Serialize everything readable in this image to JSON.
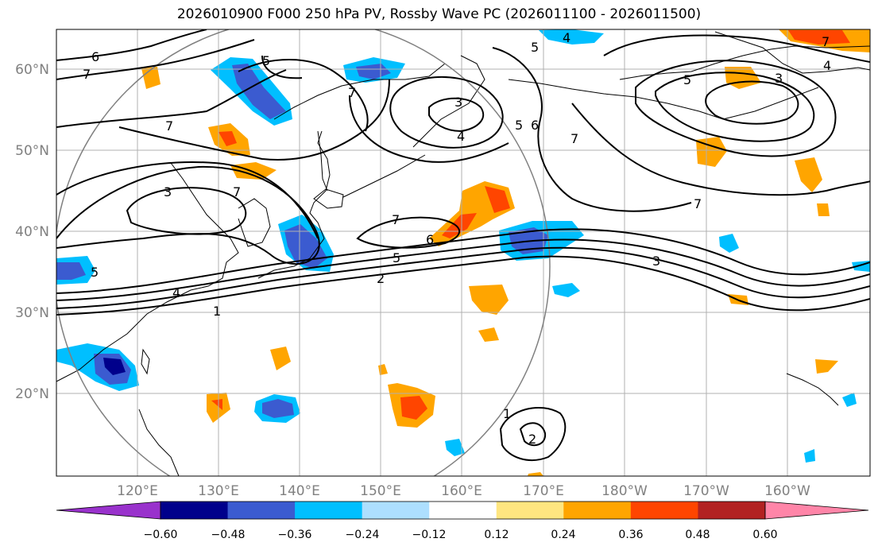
{
  "title": "2026010900 F000 250 hPa PV, Rossby Wave PC (2026011100 - 2026011500)",
  "map": {
    "lon_ticks": [
      "120°E",
      "130°E",
      "140°E",
      "150°E",
      "160°E",
      "170°E",
      "180°W",
      "170°W",
      "160°W"
    ],
    "lat_ticks": [
      "60°N",
      "50°N",
      "40°N",
      "30°N",
      "20°N"
    ],
    "contour_labels": [
      "6",
      "7",
      "5",
      "4",
      "7",
      "7",
      "3",
      "4",
      "5",
      "6",
      "7",
      "3",
      "7",
      "7",
      "6",
      "5",
      "2",
      "4",
      "1",
      "5",
      "3",
      "7",
      "5",
      "4",
      "7",
      "5",
      "3",
      "1",
      "2"
    ],
    "colors": {
      "gridline": "#b0b0b0",
      "contour": "#000000",
      "circle": "#808080"
    }
  },
  "colorbar": {
    "labels": [
      "−0.60",
      "−0.48",
      "−0.36",
      "−0.24",
      "−0.12",
      "0.12",
      "0.24",
      "0.36",
      "0.48",
      "0.60"
    ],
    "colors": [
      "#9932CC",
      "#00008B",
      "#3B5BD0",
      "#00BFFF",
      "#ADDFFF",
      "#FFFFFF",
      "#FFE680",
      "#FFA500",
      "#FF4500",
      "#B22222",
      "#FF85A8"
    ]
  }
}
